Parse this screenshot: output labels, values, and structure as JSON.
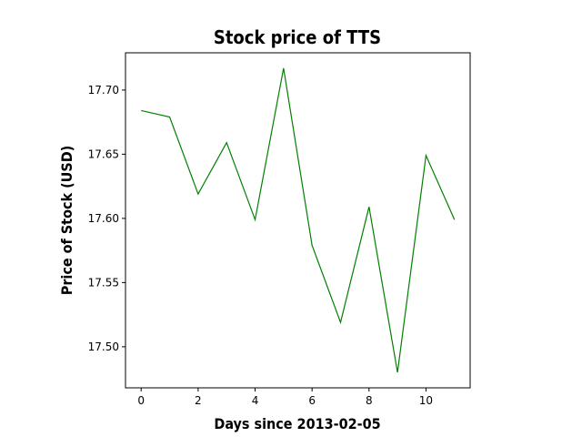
{
  "chart_data": {
    "type": "line",
    "title": "Stock price of TTS",
    "xlabel": "Days since 2013-02-05",
    "ylabel": "Price of Stock (USD)",
    "x": [
      0,
      1,
      2,
      3,
      4,
      5,
      6,
      7,
      8,
      9,
      10,
      11
    ],
    "series": [
      {
        "values": [
          17.684,
          17.679,
          17.619,
          17.659,
          17.599,
          17.717,
          17.579,
          17.519,
          17.609,
          17.48,
          17.649,
          17.599
        ],
        "color": "#008000"
      }
    ],
    "xlim": [
      -0.55,
      11.55
    ],
    "ylim": [
      17.468,
      17.729
    ],
    "xticks": [
      0,
      2,
      4,
      6,
      8,
      10
    ],
    "xtick_labels": [
      "0",
      "2",
      "4",
      "6",
      "8",
      "10"
    ],
    "yticks": [
      17.5,
      17.55,
      17.6,
      17.65,
      17.7
    ],
    "ytick_labels": [
      "17.50",
      "17.55",
      "17.60",
      "17.65",
      "17.70"
    ],
    "grid": false,
    "legend": false
  }
}
